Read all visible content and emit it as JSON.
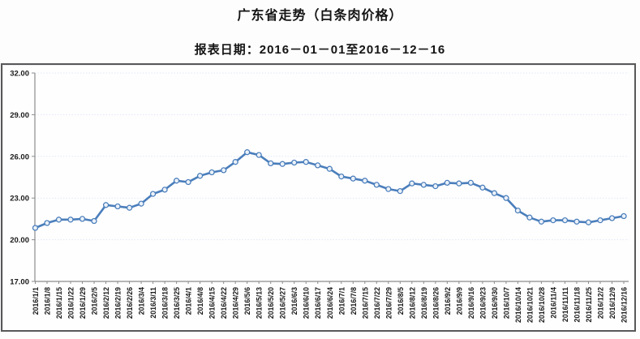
{
  "header": {
    "title": "广东省走势（白条肉价格）",
    "subtitle": "报表日期：2016－01－01至2016－12－16"
  },
  "chart_data": {
    "type": "line",
    "title": "广东省走势（白条肉价格）",
    "series_name": "白条肉价格",
    "x": [
      "2016/1/1",
      "2016/1/8",
      "2016/1/15",
      "2016/1/22",
      "2016/1/29",
      "2016/2/5",
      "2016/2/12",
      "2016/2/19",
      "2016/2/26",
      "2016/3/4",
      "2016/3/11",
      "2016/3/18",
      "2016/3/25",
      "2016/4/1",
      "2016/4/8",
      "2016/4/15",
      "2016/4/22",
      "2016/4/29",
      "2016/5/6",
      "2016/5/13",
      "2016/5/20",
      "2016/5/27",
      "2016/6/3",
      "2016/6/10",
      "2016/6/17",
      "2016/6/24",
      "2016/7/1",
      "2016/7/8",
      "2016/7/15",
      "2016/7/22",
      "2016/7/29",
      "2016/8/5",
      "2016/8/12",
      "2016/8/19",
      "2016/8/26",
      "2016/9/2",
      "2016/9/9",
      "2016/9/16",
      "2016/9/23",
      "2016/9/30",
      "2016/10/7",
      "2016/10/14",
      "2016/10/21",
      "2016/10/28",
      "2016/11/4",
      "2016/11/11",
      "2016/11/18",
      "2016/11/25",
      "2016/12/2",
      "2016/12/9",
      "2016/12/16"
    ],
    "values": [
      20.85,
      21.2,
      21.45,
      21.45,
      21.5,
      21.35,
      22.5,
      22.4,
      22.3,
      22.6,
      23.3,
      23.6,
      24.25,
      24.15,
      24.6,
      24.85,
      25.0,
      25.6,
      26.3,
      26.1,
      25.5,
      25.45,
      25.55,
      25.6,
      25.35,
      25.1,
      24.55,
      24.4,
      24.25,
      23.95,
      23.65,
      23.5,
      24.05,
      23.95,
      23.85,
      24.1,
      24.05,
      24.1,
      23.75,
      23.35,
      23.0,
      22.1,
      21.6,
      21.3,
      21.4,
      21.4,
      21.3,
      21.25,
      21.4,
      21.55,
      21.7
    ],
    "ylim": [
      17,
      32
    ],
    "yticks": [
      17,
      20,
      23,
      26,
      29,
      32
    ],
    "ytick_labels": [
      "17.00",
      "20.00",
      "23.00",
      "26.00",
      "29.00",
      "32.00"
    ],
    "grid": true,
    "legend": "none",
    "colors": {
      "line": "#4a7ebb",
      "marker_fill": "#fafcfe",
      "gridline": "#dde8f4",
      "axis": "#8c8c8c",
      "label": "#1a1a1a"
    }
  }
}
